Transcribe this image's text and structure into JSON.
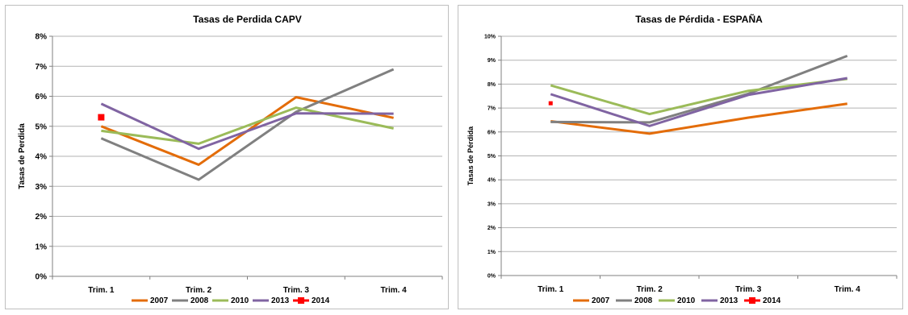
{
  "chart_data": [
    {
      "type": "line",
      "title": "Tasas de Perdida CAPV",
      "xlabel": "",
      "ylabel": "Tasas de Perdida",
      "categories": [
        "Trim. 1",
        "Trim. 2",
        "Trim. 3",
        "Trim. 4"
      ],
      "yticks": [
        "0%",
        "1%",
        "2%",
        "3%",
        "4%",
        "5%",
        "6%",
        "7%",
        "8%"
      ],
      "ylim": [
        0,
        8
      ],
      "grid": true,
      "legend": "bottom",
      "series": [
        {
          "name": "2007",
          "color": "#E36C09",
          "values": [
            5.0,
            3.72,
            5.97,
            5.28
          ]
        },
        {
          "name": "2008",
          "color": "#808080",
          "values": [
            4.6,
            3.22,
            5.48,
            6.9
          ]
        },
        {
          "name": "2010",
          "color": "#9BBB59",
          "values": [
            4.85,
            4.42,
            5.62,
            4.93
          ]
        },
        {
          "name": "2013",
          "color": "#8064A2",
          "values": [
            5.75,
            4.25,
            5.43,
            5.42
          ]
        },
        {
          "name": "2014",
          "color": "#FF0000",
          "values": [
            5.3,
            null,
            null,
            null
          ]
        }
      ]
    },
    {
      "type": "line",
      "title": "Tasas de Pérdida - ESPAÑA",
      "xlabel": "",
      "ylabel": "Tasas de Pérdida",
      "categories": [
        "Trim. 1",
        "Trim. 2",
        "Trim. 3",
        "Trim. 4"
      ],
      "yticks": [
        "0%",
        "1%",
        "2%",
        "3%",
        "4%",
        "5%",
        "6%",
        "7%",
        "8%",
        "9%",
        "10%"
      ],
      "ylim": [
        0,
        10
      ],
      "grid": true,
      "legend": "bottom",
      "series": [
        {
          "name": "2007",
          "color": "#E36C09",
          "values": [
            6.45,
            5.93,
            6.6,
            7.18
          ]
        },
        {
          "name": "2008",
          "color": "#808080",
          "values": [
            6.42,
            6.4,
            7.6,
            9.18
          ]
        },
        {
          "name": "2010",
          "color": "#9BBB59",
          "values": [
            7.95,
            6.75,
            7.72,
            8.22
          ]
        },
        {
          "name": "2013",
          "color": "#8064A2",
          "values": [
            7.58,
            6.25,
            7.55,
            8.25
          ]
        },
        {
          "name": "2014",
          "color": "#FF0000",
          "values": [
            7.2,
            null,
            null,
            null
          ]
        }
      ]
    }
  ]
}
